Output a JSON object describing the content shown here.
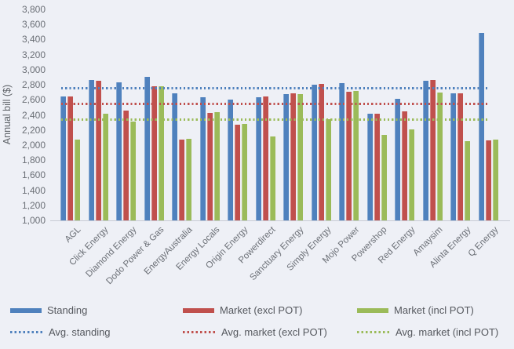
{
  "chart_data": {
    "type": "bar",
    "title": "",
    "xlabel": "",
    "ylabel": "Annual bill ($)",
    "ylim": [
      1000,
      3800
    ],
    "ytick_step": 200,
    "yticks": [
      "1,000",
      "1,200",
      "1,400",
      "1,600",
      "1,800",
      "2,000",
      "2,200",
      "2,400",
      "2,600",
      "2,800",
      "3,000",
      "3,200",
      "3,400",
      "3,600",
      "3,800"
    ],
    "grid": false,
    "legend_position": "bottom",
    "background": "#eef0f6",
    "categories": [
      "AGL",
      "Click Energy",
      "Diamond Energy",
      "Dodo Power & Gas",
      "EnergyAustralia",
      "Energy Locals",
      "Origin Energy",
      "Powerdirect",
      "Sanctuary Energy",
      "Simply Energy",
      "Mojo Power",
      "Powershop",
      "Red Energy",
      "Amaysim",
      "Alinta Energy",
      "Q Energy"
    ],
    "series": [
      {
        "name": "Standing",
        "color": "#4f81bd",
        "values": [
          2640,
          2860,
          2830,
          2910,
          2690,
          2630,
          2600,
          2630,
          2680,
          2800,
          2820,
          2420,
          2610,
          2850,
          2690,
          3490
        ]
      },
      {
        "name": "Market (excl POT)",
        "color": "#c0504d",
        "values": [
          2640,
          2850,
          2460,
          2780,
          2070,
          2430,
          2270,
          2640,
          2690,
          2810,
          2710,
          2420,
          2450,
          2860,
          2690,
          2060
        ]
      },
      {
        "name": "Market (incl POT)",
        "color": "#9bbb59",
        "values": [
          2070,
          2420,
          2310,
          2780,
          2080,
          2440,
          2280,
          2110,
          2680,
          2340,
          2720,
          2130,
          2210,
          2700,
          2050,
          2070
        ]
      }
    ],
    "avg_lines": [
      {
        "name": "Avg. standing",
        "color": "#4f81bd",
        "value": 2760
      },
      {
        "name": "Avg. market (excl POT)",
        "color": "#c0504d",
        "value": 2550
      },
      {
        "name": "Avg. market (incl POT)",
        "color": "#9bbb59",
        "value": 2340
      }
    ]
  }
}
